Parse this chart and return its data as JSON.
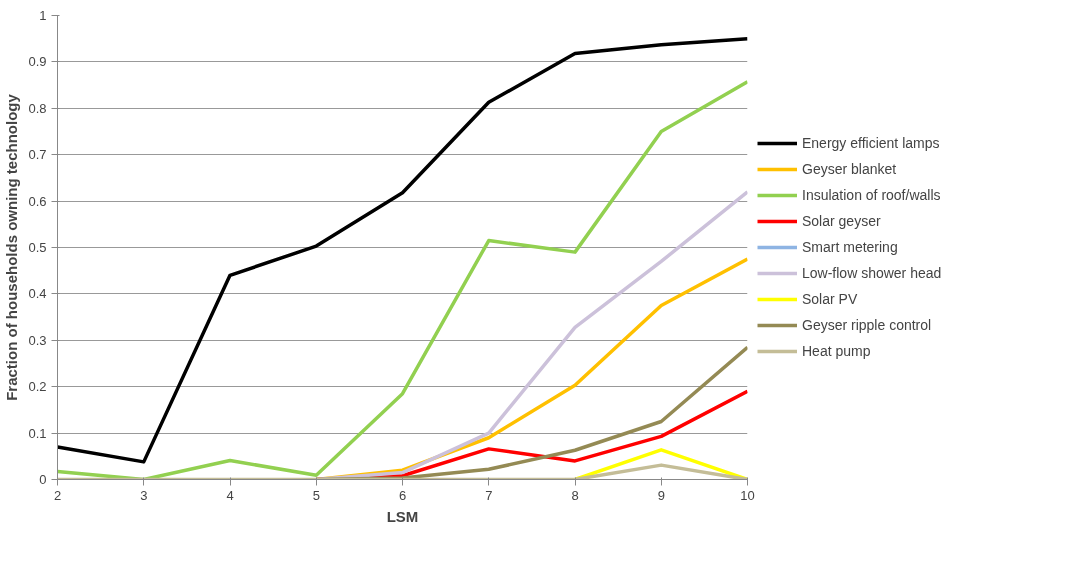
{
  "chart_data": {
    "type": "line",
    "xlabel": "LSM",
    "ylabel": "Fraction of households owning technology",
    "x": [
      2,
      3,
      4,
      5,
      6,
      7,
      8,
      9,
      10
    ],
    "xlim": [
      2,
      10
    ],
    "xticks": [
      2,
      3,
      4,
      5,
      6,
      7,
      8,
      9,
      10
    ],
    "ylim": [
      0,
      1
    ],
    "yticks": [
      0,
      {
        "value": 0.1,
        "label": "0.1"
      },
      {
        "value": 0.2,
        "label": "0.2"
      },
      {
        "value": 0.3,
        "label": "0.3"
      },
      {
        "value": 0.4,
        "label": "0.4"
      },
      {
        "value": 0.5,
        "label": "0.5"
      },
      {
        "value": 0.6,
        "label": "0.6"
      },
      {
        "value": 0.7,
        "label": "0.7"
      },
      {
        "value": 0.8,
        "label": "0.8"
      },
      {
        "value": 0.9,
        "label": "0.9"
      },
      1
    ],
    "grid": "y",
    "legend": "right",
    "marker": "none",
    "line_style": "solid",
    "series": [
      {
        "name": "Energy efficient lamps",
        "color": "#000000",
        "values": [
          0.07,
          0.038,
          0.44,
          0.503,
          0.618,
          0.813,
          0.918,
          0.937,
          0.95
        ]
      },
      {
        "name": "Geyser blanket",
        "color": "#ffc000",
        "values": [
          null,
          null,
          null,
          0,
          0.02,
          0.09,
          0.203,
          0.375,
          0.475
        ]
      },
      {
        "name": "Insulation of roof/walls",
        "color": "#92d050",
        "values": [
          0.017,
          0,
          0.041,
          0.009,
          0.185,
          0.515,
          0.49,
          0.75,
          0.857
        ]
      },
      {
        "name": "Solar geyser",
        "color": "#ff0000",
        "values": [
          null,
          null,
          null,
          0,
          0.008,
          0.066,
          0.04,
          0.093,
          0.19
        ]
      },
      {
        "name": "Smart metering",
        "color": "#8eb4e3",
        "values": [
          null,
          null,
          null,
          null,
          null,
          null,
          null,
          null,
          null
        ]
      },
      {
        "name": "Low-flow shower head",
        "color": "#ccc1da",
        "values": [
          null,
          null,
          null,
          0,
          0.015,
          0.1,
          0.328,
          0.47,
          0.62
        ]
      },
      {
        "name": "Solar PV",
        "color": "#ffff00",
        "values": [
          null,
          null,
          null,
          null,
          null,
          null,
          0,
          0.064,
          0
        ]
      },
      {
        "name": "Geyser ripple control",
        "color": "#948a54",
        "values": [
          null,
          null,
          null,
          0,
          0.003,
          0.022,
          0.063,
          0.125,
          0.285
        ]
      },
      {
        "name": "Heat pump",
        "color": "#c4bd97",
        "values": [
          0,
          0,
          0,
          0,
          0,
          0,
          0,
          0.031,
          0
        ]
      }
    ]
  }
}
